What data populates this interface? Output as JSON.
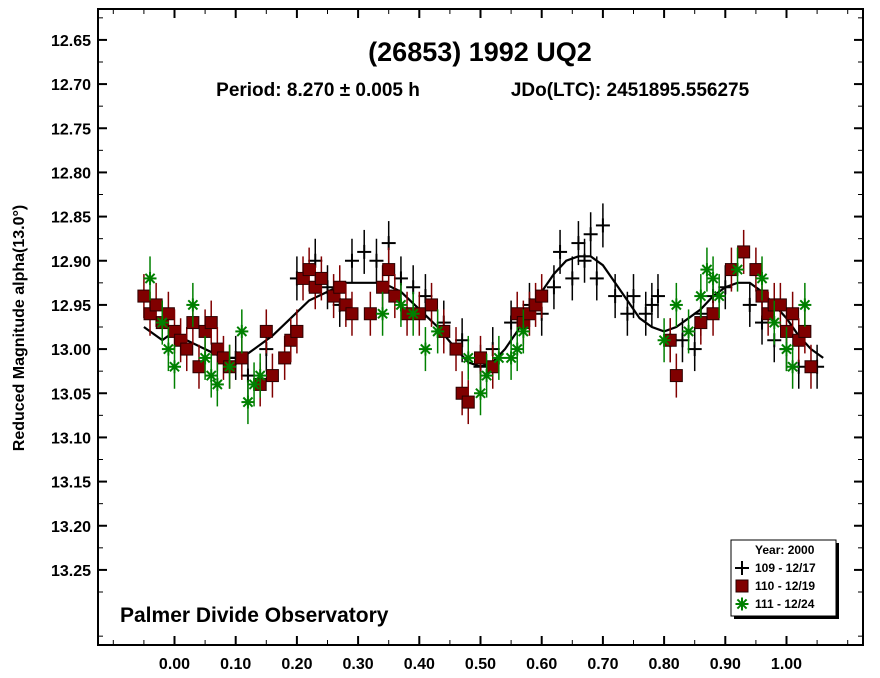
{
  "chart_data": {
    "type": "scatter",
    "title": "(26853) 1992 UQ2",
    "subtitle_period": "Period: 8.270 ± 0.005 h",
    "subtitle_epoch": "JDo(LTC): 2451895.556275",
    "ylabel": "Reduced Magnitude alpha(13.0°)",
    "xlabel": "",
    "xlim": [
      -0.125,
      1.125
    ],
    "ylim": [
      12.615,
      13.335
    ],
    "y_inverted": true,
    "x_ticks": [
      "0.00",
      "0.10",
      "0.20",
      "0.30",
      "0.40",
      "0.50",
      "0.60",
      "0.70",
      "0.80",
      "0.90",
      "1.00"
    ],
    "y_ticks": [
      "12.65",
      "12.70",
      "12.75",
      "12.80",
      "12.85",
      "12.90",
      "12.95",
      "13.00",
      "13.05",
      "13.10",
      "13.15",
      "13.20",
      "13.25"
    ],
    "observatory": "Palmer Divide Observatory",
    "legend": {
      "title": "Year: 2000",
      "placement": "bottom-right",
      "entries": [
        "109 - 12/17",
        "110 - 12/19",
        "111 - 12/24"
      ]
    },
    "series": [
      {
        "name": "109 - 12/17",
        "marker": "plus",
        "color": "#000000",
        "points": [
          [
            0.1,
            13.01
          ],
          [
            0.12,
            13.03
          ],
          [
            0.15,
            13.0
          ],
          [
            0.2,
            12.92
          ],
          [
            0.23,
            12.9
          ],
          [
            0.25,
            12.93
          ],
          [
            0.27,
            12.95
          ],
          [
            0.29,
            12.9
          ],
          [
            0.31,
            12.89
          ],
          [
            0.33,
            12.9
          ],
          [
            0.35,
            12.88
          ],
          [
            0.37,
            12.92
          ],
          [
            0.39,
            12.93
          ],
          [
            0.41,
            12.94
          ],
          [
            0.44,
            12.97
          ],
          [
            0.47,
            12.99
          ],
          [
            0.5,
            13.02
          ],
          [
            0.52,
            13.0
          ],
          [
            0.55,
            12.97
          ],
          [
            0.58,
            12.95
          ],
          [
            0.6,
            12.96
          ],
          [
            0.62,
            12.93
          ],
          [
            0.63,
            12.89
          ],
          [
            0.65,
            12.92
          ],
          [
            0.66,
            12.88
          ],
          [
            0.67,
            12.9
          ],
          [
            0.68,
            12.87
          ],
          [
            0.69,
            12.92
          ],
          [
            0.7,
            12.86
          ],
          [
            0.72,
            12.94
          ],
          [
            0.74,
            12.96
          ],
          [
            0.75,
            12.94
          ],
          [
            0.77,
            12.96
          ],
          [
            0.78,
            12.95
          ],
          [
            0.79,
            12.94
          ],
          [
            0.81,
            12.99
          ],
          [
            0.83,
            12.99
          ],
          [
            0.85,
            13.0
          ],
          [
            0.86,
            12.96
          ],
          [
            0.88,
            12.94
          ],
          [
            0.9,
            12.93
          ],
          [
            0.94,
            12.95
          ],
          [
            0.96,
            12.97
          ],
          [
            0.98,
            12.99
          ],
          [
            1.0,
            13.0
          ],
          [
            1.02,
            13.02
          ],
          [
            1.05,
            13.02
          ]
        ]
      },
      {
        "name": "110 - 12/19",
        "marker": "square",
        "color": "#800000",
        "points": [
          [
            -0.05,
            12.94
          ],
          [
            -0.04,
            12.96
          ],
          [
            -0.03,
            12.95
          ],
          [
            -0.02,
            12.97
          ],
          [
            -0.01,
            12.96
          ],
          [
            0.0,
            12.98
          ],
          [
            0.01,
            12.99
          ],
          [
            0.02,
            13.0
          ],
          [
            0.03,
            12.97
          ],
          [
            0.04,
            13.02
          ],
          [
            0.05,
            12.98
          ],
          [
            0.06,
            12.97
          ],
          [
            0.07,
            13.0
          ],
          [
            0.08,
            13.01
          ],
          [
            0.09,
            13.02
          ],
          [
            0.11,
            13.01
          ],
          [
            0.14,
            13.04
          ],
          [
            0.15,
            12.98
          ],
          [
            0.16,
            13.03
          ],
          [
            0.18,
            13.01
          ],
          [
            0.19,
            12.99
          ],
          [
            0.2,
            12.98
          ],
          [
            0.21,
            12.92
          ],
          [
            0.22,
            12.91
          ],
          [
            0.23,
            12.93
          ],
          [
            0.24,
            12.92
          ],
          [
            0.26,
            12.94
          ],
          [
            0.27,
            12.93
          ],
          [
            0.28,
            12.95
          ],
          [
            0.29,
            12.96
          ],
          [
            0.32,
            12.96
          ],
          [
            0.34,
            12.93
          ],
          [
            0.35,
            12.91
          ],
          [
            0.36,
            12.94
          ],
          [
            0.38,
            12.96
          ],
          [
            0.4,
            12.96
          ],
          [
            0.42,
            12.95
          ],
          [
            0.44,
            12.98
          ],
          [
            0.46,
            13.0
          ],
          [
            0.47,
            13.05
          ],
          [
            0.48,
            13.06
          ],
          [
            0.5,
            13.01
          ],
          [
            0.52,
            13.02
          ],
          [
            0.56,
            12.96
          ],
          [
            0.57,
            12.97
          ],
          [
            0.58,
            12.96
          ],
          [
            0.59,
            12.95
          ],
          [
            0.6,
            12.94
          ],
          [
            0.81,
            12.99
          ],
          [
            0.82,
            13.03
          ],
          [
            0.86,
            12.97
          ],
          [
            0.88,
            12.96
          ],
          [
            0.91,
            12.91
          ],
          [
            0.93,
            12.89
          ],
          [
            0.95,
            12.91
          ],
          [
            0.96,
            12.94
          ],
          [
            0.97,
            12.96
          ],
          [
            0.98,
            12.95
          ],
          [
            0.99,
            12.95
          ],
          [
            1.0,
            12.98
          ],
          [
            1.01,
            12.96
          ],
          [
            1.02,
            12.99
          ],
          [
            1.03,
            12.98
          ],
          [
            1.04,
            13.02
          ]
        ]
      },
      {
        "name": "111 - 12/24",
        "marker": "asterisk",
        "color": "#008000",
        "points": [
          [
            -0.04,
            12.92
          ],
          [
            -0.02,
            12.97
          ],
          [
            -0.01,
            13.0
          ],
          [
            0.0,
            13.02
          ],
          [
            0.03,
            12.95
          ],
          [
            0.05,
            13.01
          ],
          [
            0.06,
            13.03
          ],
          [
            0.07,
            13.04
          ],
          [
            0.09,
            13.02
          ],
          [
            0.11,
            12.98
          ],
          [
            0.12,
            13.06
          ],
          [
            0.13,
            13.04
          ],
          [
            0.14,
            13.03
          ],
          [
            0.34,
            12.96
          ],
          [
            0.37,
            12.95
          ],
          [
            0.39,
            12.96
          ],
          [
            0.41,
            13.0
          ],
          [
            0.43,
            12.98
          ],
          [
            0.48,
            13.01
          ],
          [
            0.5,
            13.05
          ],
          [
            0.51,
            13.03
          ],
          [
            0.53,
            13.01
          ],
          [
            0.55,
            13.01
          ],
          [
            0.56,
            13.0
          ],
          [
            0.57,
            12.98
          ],
          [
            0.8,
            12.99
          ],
          [
            0.82,
            12.95
          ],
          [
            0.84,
            12.98
          ],
          [
            0.86,
            12.94
          ],
          [
            0.87,
            12.91
          ],
          [
            0.88,
            12.92
          ],
          [
            0.89,
            12.94
          ],
          [
            0.92,
            12.91
          ],
          [
            0.96,
            12.92
          ],
          [
            0.98,
            12.97
          ],
          [
            1.0,
            13.0
          ],
          [
            1.01,
            13.02
          ],
          [
            1.03,
            12.95
          ]
        ]
      }
    ],
    "fit_curve": [
      [
        -0.05,
        12.975
      ],
      [
        -0.02,
        12.99
      ],
      [
        0.0,
        12.98
      ],
      [
        0.02,
        12.99
      ],
      [
        0.05,
        13.0
      ],
      [
        0.08,
        13.01
      ],
      [
        0.11,
        13.01
      ],
      [
        0.13,
        13.0
      ],
      [
        0.16,
        12.985
      ],
      [
        0.19,
        12.965
      ],
      [
        0.22,
        12.945
      ],
      [
        0.25,
        12.935
      ],
      [
        0.28,
        12.925
      ],
      [
        0.31,
        12.925
      ],
      [
        0.34,
        12.925
      ],
      [
        0.37,
        12.935
      ],
      [
        0.4,
        12.955
      ],
      [
        0.43,
        12.975
      ],
      [
        0.46,
        13.0
      ],
      [
        0.48,
        13.015
      ],
      [
        0.5,
        13.02
      ],
      [
        0.52,
        13.015
      ],
      [
        0.54,
        13.0
      ],
      [
        0.56,
        12.98
      ],
      [
        0.58,
        12.955
      ],
      [
        0.6,
        12.935
      ],
      [
        0.62,
        12.915
      ],
      [
        0.64,
        12.9
      ],
      [
        0.66,
        12.895
      ],
      [
        0.68,
        12.895
      ],
      [
        0.7,
        12.905
      ],
      [
        0.72,
        12.925
      ],
      [
        0.74,
        12.945
      ],
      [
        0.76,
        12.965
      ],
      [
        0.78,
        12.975
      ],
      [
        0.8,
        12.98
      ],
      [
        0.82,
        12.975
      ],
      [
        0.84,
        12.965
      ],
      [
        0.86,
        12.955
      ],
      [
        0.88,
        12.94
      ],
      [
        0.9,
        12.93
      ],
      [
        0.92,
        12.925
      ],
      [
        0.94,
        12.925
      ],
      [
        0.96,
        12.935
      ],
      [
        0.98,
        12.95
      ],
      [
        1.0,
        12.965
      ],
      [
        1.02,
        12.985
      ],
      [
        1.04,
        13.0
      ],
      [
        1.06,
        13.01
      ]
    ]
  }
}
